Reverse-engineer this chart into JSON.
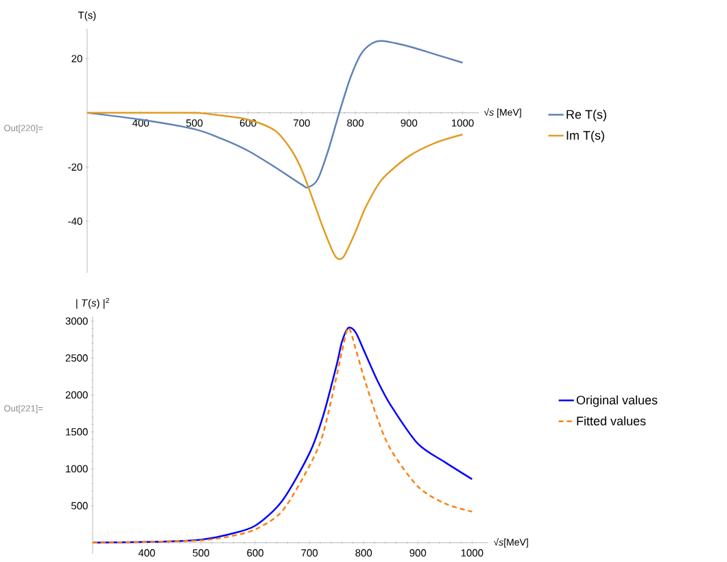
{
  "chart_data": [
    {
      "type": "line",
      "xlabel": "√*s* [MeV]",
      "ylabel": "T(s)",
      "annotations": [
        "Out[220]="
      ],
      "xlim": [
        300,
        1030
      ],
      "ylim": [
        -59,
        31
      ],
      "xticks": [
        400,
        500,
        600,
        700,
        800,
        900,
        1000
      ],
      "yticks": [
        -40,
        -20,
        20
      ],
      "legend": "right",
      "series": [
        {
          "name": "Re T(s)",
          "color": "#5e81b5",
          "line_style": "solid",
          "x": [
            300,
            400,
            500,
            550,
            600,
            650,
            700,
            712,
            730,
            750,
            770,
            790,
            810,
            830,
            850,
            900,
            950,
            1000
          ],
          "values": [
            0,
            -2.5,
            -6,
            -9.5,
            -14,
            -20,
            -26.5,
            -27.5,
            -24.5,
            -13.5,
            0,
            12.5,
            21.5,
            25.5,
            26.5,
            24.5,
            21.5,
            18.5
          ]
        },
        {
          "name": "Im T(s)",
          "color": "#e19c24",
          "line_style": "solid",
          "x": [
            300,
            400,
            500,
            550,
            600,
            650,
            680,
            700,
            720,
            740,
            760,
            770,
            780,
            800,
            820,
            850,
            900,
            950,
            1000
          ],
          "values": [
            0,
            0,
            0,
            -1,
            -2.5,
            -6.5,
            -13.5,
            -21,
            -31.5,
            -42.5,
            -52,
            -54,
            -52.5,
            -44,
            -34.5,
            -24.5,
            -16,
            -11,
            -8
          ]
        }
      ]
    },
    {
      "type": "line",
      "xlabel": "√*s*[MeV]",
      "ylabel": "| *T*(*s*) |$^{2}$",
      "annotations": [
        "Out[221]="
      ],
      "xlim": [
        300,
        1030
      ],
      "ylim": [
        -150,
        3060
      ],
      "xticks": [
        400,
        500,
        600,
        700,
        800,
        900,
        1000
      ],
      "yticks": [
        500,
        1000,
        1500,
        2000,
        2500,
        3000
      ],
      "legend": "right",
      "series": [
        {
          "name": "Original values",
          "color": "#0000ff",
          "line_style": "solid",
          "x": [
            300,
            400,
            450,
            500,
            550,
            600,
            650,
            700,
            725,
            750,
            760,
            772,
            785,
            800,
            825,
            850,
            900,
            950,
            1000
          ],
          "values": [
            0,
            10,
            20,
            40,
            110,
            230,
            570,
            1210,
            1710,
            2400,
            2720,
            2910,
            2850,
            2610,
            2200,
            1860,
            1340,
            1090,
            860
          ]
        },
        {
          "name": "Fitted values",
          "color": "#ff7f0e",
          "line_style": "dashed",
          "x": [
            300,
            400,
            450,
            500,
            550,
            600,
            650,
            700,
            725,
            750,
            760,
            772,
            785,
            800,
            825,
            850,
            900,
            950,
            1000
          ],
          "values": [
            0,
            10,
            20,
            30,
            80,
            180,
            430,
            1040,
            1470,
            2250,
            2590,
            2910,
            2630,
            2250,
            1690,
            1260,
            760,
            530,
            420
          ]
        }
      ]
    }
  ]
}
